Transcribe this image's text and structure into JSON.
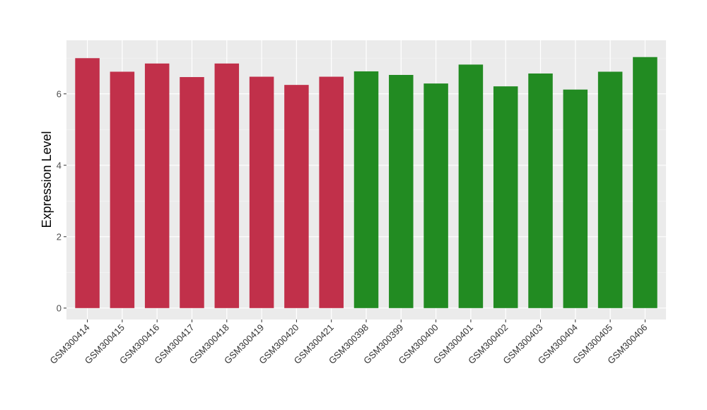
{
  "chart_data": {
    "type": "bar",
    "title": "",
    "xlabel": "",
    "ylabel": "Expression Level",
    "ylim": [
      -0.32,
      7.5
    ],
    "yticks": [
      0,
      2,
      4,
      6
    ],
    "grid": true,
    "legend": "none",
    "colors": {
      "panel_background": "#ebebeb",
      "grid_major": "#ffffff",
      "grid_minor": "#f5f5f5"
    },
    "categories": [
      "GSM300414",
      "GSM300415",
      "GSM300416",
      "GSM300417",
      "GSM300418",
      "GSM300419",
      "GSM300420",
      "GSM300421",
      "GSM300398",
      "GSM300399",
      "GSM300400",
      "GSM300401",
      "GSM300402",
      "GSM300403",
      "GSM300404",
      "GSM300405",
      "GSM300406"
    ],
    "values": [
      7.0,
      6.62,
      6.85,
      6.47,
      6.85,
      6.48,
      6.25,
      6.48,
      6.63,
      6.53,
      6.29,
      6.82,
      6.21,
      6.57,
      6.12,
      6.62,
      7.03
    ],
    "bar_colors": [
      "#c1304a",
      "#c1304a",
      "#c1304a",
      "#c1304a",
      "#c1304a",
      "#c1304a",
      "#c1304a",
      "#c1304a",
      "#228b22",
      "#228b22",
      "#228b22",
      "#228b22",
      "#228b22",
      "#228b22",
      "#228b22",
      "#228b22",
      "#228b22"
    ]
  }
}
